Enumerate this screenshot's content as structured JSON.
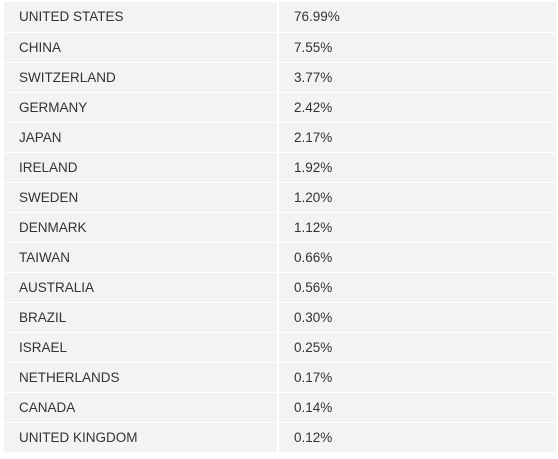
{
  "table": {
    "rows": [
      {
        "country": "UNITED STATES",
        "percent": "76.99%"
      },
      {
        "country": "CHINA",
        "percent": "7.55%"
      },
      {
        "country": "SWITZERLAND",
        "percent": "3.77%"
      },
      {
        "country": "GERMANY",
        "percent": "2.42%"
      },
      {
        "country": "JAPAN",
        "percent": "2.17%"
      },
      {
        "country": "IRELAND",
        "percent": "1.92%"
      },
      {
        "country": "SWEDEN",
        "percent": "1.20%"
      },
      {
        "country": "DENMARK",
        "percent": "1.12%"
      },
      {
        "country": "TAIWAN",
        "percent": "0.66%"
      },
      {
        "country": "AUSTRALIA",
        "percent": "0.56%"
      },
      {
        "country": "BRAZIL",
        "percent": "0.30%"
      },
      {
        "country": "ISRAEL",
        "percent": "0.25%"
      },
      {
        "country": "NETHERLANDS",
        "percent": "0.17%"
      },
      {
        "country": "CANADA",
        "percent": "0.14%"
      },
      {
        "country": "UNITED KINGDOM",
        "percent": "0.12%"
      }
    ]
  },
  "colors": {
    "row_background": "#f3f3f3",
    "text": "#333333",
    "separator": "#ffffff"
  }
}
